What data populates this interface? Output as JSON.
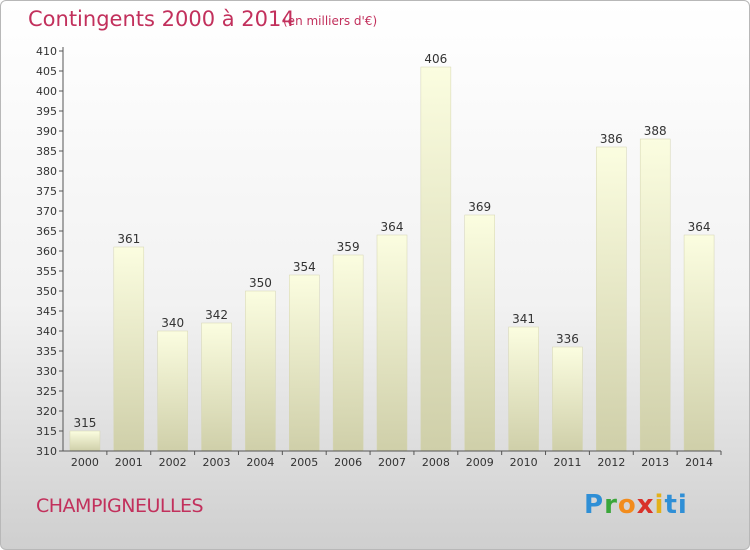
{
  "title": "Contingents 2000 à 2014",
  "subtitle": "(en milliers d'€)",
  "commune": "CHAMPIGNEULLES",
  "logo": {
    "letters": [
      "P",
      "r",
      "o",
      "x",
      "i",
      "t",
      "i"
    ]
  },
  "chart_data": {
    "type": "bar",
    "categories": [
      "2000",
      "2001",
      "2002",
      "2003",
      "2004",
      "2005",
      "2006",
      "2007",
      "2008",
      "2009",
      "2010",
      "2011",
      "2012",
      "2013",
      "2014"
    ],
    "values": [
      315,
      361,
      340,
      342,
      350,
      354,
      359,
      364,
      406,
      369,
      341,
      336,
      386,
      388,
      364
    ],
    "data_labels": [
      "315",
      "361",
      "340",
      "342",
      "350",
      "354",
      "359",
      "364",
      "406",
      "369",
      "341",
      "336",
      "386",
      "388",
      "364"
    ],
    "ylim": [
      310,
      410
    ],
    "ytick_step": 5,
    "grid": false,
    "bar_color": "#eeeecb"
  }
}
